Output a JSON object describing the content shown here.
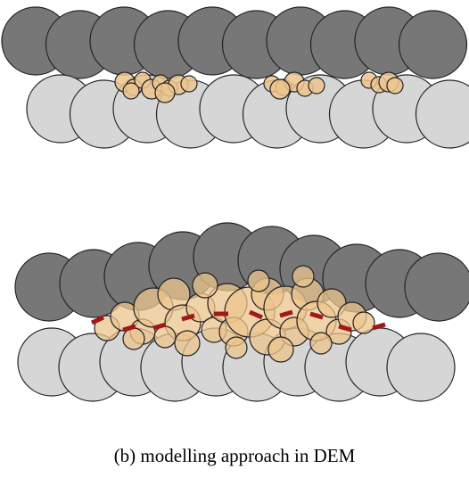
{
  "caption": "(b) modelling approach in DEM"
}
